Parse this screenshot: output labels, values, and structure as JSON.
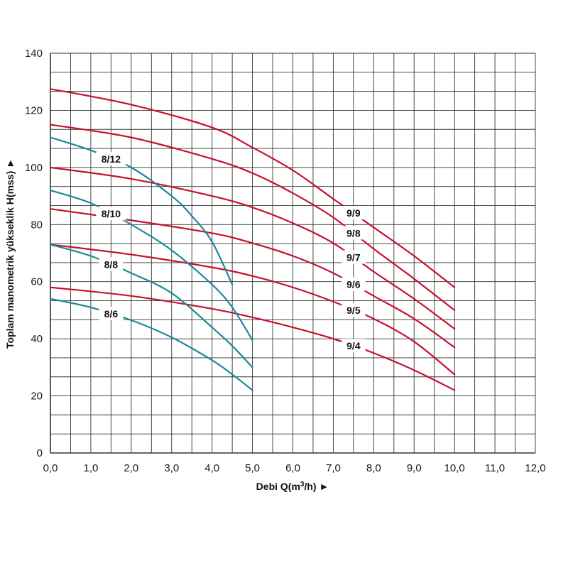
{
  "chart_data": {
    "type": "line",
    "xlabel": "Debi Q(m³/h) ►",
    "xlabel_parts": {
      "prefix": "Debi Q(m",
      "sup": "3",
      "suffix": "/h) ►"
    },
    "ylabel": "Toplam manometrik yükseklik H(mss) ►",
    "xlim": [
      0,
      12
    ],
    "ylim": [
      0,
      140
    ],
    "x_ticks": [
      "0,0",
      "1,0",
      "2,0",
      "3,0",
      "4,0",
      "5,0",
      "6,0",
      "7,0",
      "8,0",
      "9,0",
      "10,0",
      "11,0",
      "12,0"
    ],
    "y_ticks": [
      "0",
      "20",
      "40",
      "60",
      "80",
      "100",
      "120",
      "140"
    ],
    "grid": true,
    "colors": {
      "series_9": "#c8102e",
      "series_8": "#1a8a9a",
      "grid": "#333333"
    },
    "series": [
      {
        "name": "9/9",
        "group": "9",
        "label_x": 7.5,
        "x": [
          0,
          2,
          4,
          5,
          6,
          7,
          8,
          9,
          10
        ],
        "y": [
          127.5,
          122,
          114,
          107,
          99,
          89,
          79,
          69,
          58
        ]
      },
      {
        "name": "9/8",
        "group": "9",
        "label_x": 7.5,
        "x": [
          0,
          2,
          4,
          5,
          6,
          7,
          8,
          9,
          10
        ],
        "y": [
          115,
          110.5,
          103,
          98,
          91,
          82.5,
          71.5,
          61,
          50
        ]
      },
      {
        "name": "9/7",
        "group": "9",
        "label_x": 7.5,
        "x": [
          0,
          2,
          4,
          5,
          6,
          7,
          8,
          9,
          10
        ],
        "y": [
          100,
          96,
          90,
          86,
          80.5,
          73.5,
          63.5,
          54,
          43.5
        ]
      },
      {
        "name": "9/6",
        "group": "9",
        "label_x": 7.5,
        "x": [
          0,
          2,
          4,
          5,
          6,
          7,
          8,
          9,
          10
        ],
        "y": [
          85.5,
          81.5,
          77,
          73.5,
          69,
          63,
          55,
          47,
          37
        ]
      },
      {
        "name": "9/5",
        "group": "9",
        "label_x": 7.5,
        "x": [
          0,
          2,
          4,
          5,
          6,
          7,
          8,
          9,
          10
        ],
        "y": [
          73,
          69.5,
          65,
          62,
          58,
          53,
          47,
          39,
          27.5
        ]
      },
      {
        "name": "9/4",
        "group": "9",
        "label_x": 7.5,
        "x": [
          0,
          2,
          4,
          5,
          6,
          7,
          8,
          9,
          10
        ],
        "y": [
          58,
          55,
          50.5,
          47.5,
          44,
          40,
          35,
          29,
          22
        ]
      },
      {
        "name": "8/12",
        "group": "8",
        "label_x": 1.5,
        "x": [
          0,
          1,
          2,
          3,
          3.5,
          4,
          4.5
        ],
        "y": [
          110.5,
          106,
          100,
          90,
          83,
          74,
          59
        ]
      },
      {
        "name": "8/10",
        "group": "8",
        "label_x": 1.5,
        "x": [
          0,
          1,
          2,
          3,
          4,
          4.5,
          5
        ],
        "y": [
          92,
          87.5,
          80,
          71,
          59,
          51,
          39.5
        ]
      },
      {
        "name": "8/8",
        "group": "8",
        "label_x": 1.5,
        "x": [
          0,
          1,
          2,
          3,
          4,
          4.5,
          5
        ],
        "y": [
          73,
          69,
          63,
          56,
          44,
          37.5,
          30
        ]
      },
      {
        "name": "8/6",
        "group": "8",
        "label_x": 1.5,
        "x": [
          0,
          1,
          2,
          3,
          4,
          4.5,
          5
        ],
        "y": [
          54,
          51,
          46.5,
          40.5,
          32.5,
          27.5,
          22
        ]
      }
    ]
  }
}
